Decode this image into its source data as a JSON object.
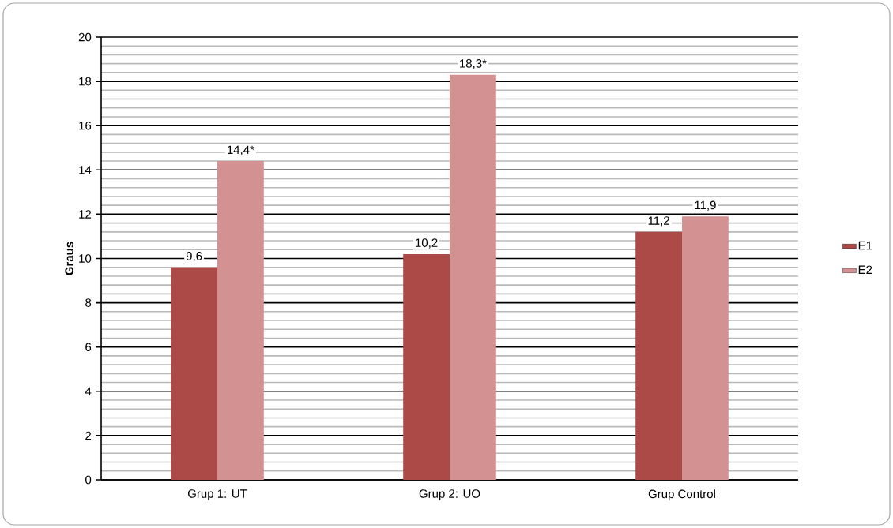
{
  "chart_data": {
    "type": "bar",
    "ylabel": "Graus",
    "categories": [
      "Grup 1: UT",
      "Grup 2: UO",
      "Grup Control"
    ],
    "series": [
      {
        "name": "E1",
        "color": "#ab4a47",
        "values": [
          9.6,
          10.2,
          11.2
        ],
        "value_labels": [
          "9,6",
          "10,2",
          "11,2"
        ]
      },
      {
        "name": "E2",
        "color": "#d39291",
        "values": [
          14.4,
          18.3,
          11.9
        ],
        "value_labels": [
          "14,4*",
          "18,3*",
          "11,9"
        ]
      }
    ],
    "ylim": [
      0,
      20
    ],
    "yticks": [
      0,
      2,
      4,
      6,
      8,
      10,
      12,
      14,
      16,
      18,
      20
    ],
    "grid": true,
    "legend": "right"
  }
}
